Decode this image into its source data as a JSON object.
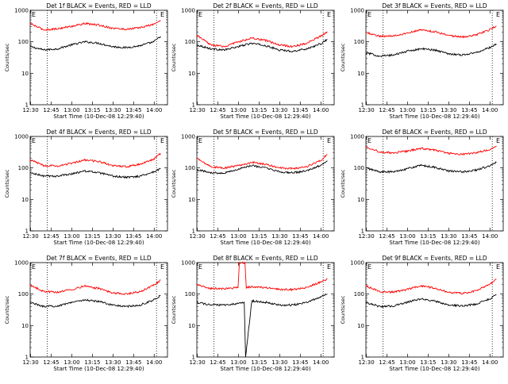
{
  "colors": {
    "events": "#000000",
    "lld": "#ff0000",
    "axes": "#000000",
    "background": "#ffffff"
  },
  "axis_labels": {
    "xlabel": "Start Time (10-Dec-08 12:29:40)",
    "ylabel": "Counts/sec",
    "xtick_labels": [
      "12:30",
      "12:45",
      "13:00",
      "13:15",
      "13:30",
      "13:45",
      "14:00"
    ],
    "ytick_labels": [
      "1",
      "10",
      "100",
      "1000"
    ],
    "corner_marker": "E"
  },
  "chart_data": [
    {
      "type": "line",
      "title": "Det 1f BLACK = Events, RED = LLD",
      "x_unit": "minutes after 12:29:40",
      "xlim": [
        0,
        100
      ],
      "ylim": [
        1,
        1000
      ],
      "yscale": "log",
      "grid": false,
      "legend": "none",
      "dotted_vlines": [
        12.5,
        92
      ],
      "series": [
        {
          "key": "events",
          "color": "#000000",
          "x": [
            0,
            10,
            20,
            30,
            40,
            50,
            60,
            70,
            80,
            90,
            95
          ],
          "values": [
            70,
            55,
            60,
            80,
            100,
            90,
            70,
            65,
            75,
            100,
            150
          ]
        },
        {
          "key": "lld",
          "color": "#ff0000",
          "x": [
            0,
            10,
            20,
            30,
            40,
            50,
            60,
            70,
            80,
            90,
            95
          ],
          "values": [
            380,
            240,
            260,
            310,
            380,
            340,
            270,
            250,
            280,
            360,
            480
          ]
        }
      ]
    },
    {
      "type": "line",
      "title": "Det 2f BLACK = Events, RED = LLD",
      "x_unit": "minutes after 12:29:40",
      "xlim": [
        0,
        100
      ],
      "ylim": [
        1,
        1000
      ],
      "yscale": "log",
      "grid": false,
      "legend": "none",
      "dotted_vlines": [
        12.5,
        92
      ],
      "series": [
        {
          "key": "events",
          "color": "#000000",
          "x": [
            0,
            10,
            20,
            30,
            40,
            50,
            60,
            70,
            80,
            90,
            95
          ],
          "values": [
            80,
            60,
            55,
            70,
            90,
            75,
            55,
            50,
            60,
            85,
            120
          ]
        },
        {
          "key": "lld",
          "color": "#ff0000",
          "x": [
            0,
            10,
            20,
            30,
            40,
            50,
            60,
            70,
            80,
            90,
            95
          ],
          "values": [
            160,
            80,
            70,
            100,
            130,
            110,
            80,
            70,
            90,
            150,
            200
          ]
        }
      ]
    },
    {
      "type": "line",
      "title": "Det 3f BLACK = Events, RED = LLD",
      "x_unit": "minutes after 12:29:40",
      "xlim": [
        0,
        100
      ],
      "ylim": [
        1,
        1000
      ],
      "yscale": "log",
      "grid": false,
      "legend": "none",
      "dotted_vlines": [
        12.5,
        92
      ],
      "series": [
        {
          "key": "events",
          "color": "#000000",
          "x": [
            0,
            10,
            20,
            30,
            40,
            50,
            60,
            70,
            80,
            90,
            95
          ],
          "values": [
            45,
            35,
            38,
            50,
            60,
            55,
            42,
            38,
            45,
            65,
            85
          ]
        },
        {
          "key": "lld",
          "color": "#ff0000",
          "x": [
            0,
            10,
            20,
            30,
            40,
            50,
            60,
            70,
            80,
            90,
            95
          ],
          "values": [
            200,
            150,
            155,
            190,
            240,
            210,
            160,
            140,
            165,
            240,
            320
          ]
        }
      ]
    },
    {
      "type": "line",
      "title": "Det 4f BLACK = Events, RED = LLD",
      "x_unit": "minutes after 12:29:40",
      "xlim": [
        0,
        100
      ],
      "ylim": [
        1,
        1000
      ],
      "yscale": "log",
      "grid": false,
      "legend": "none",
      "dotted_vlines": [
        12.5,
        92
      ],
      "series": [
        {
          "key": "events",
          "color": "#000000",
          "x": [
            0,
            10,
            20,
            30,
            40,
            50,
            60,
            70,
            80,
            90,
            95
          ],
          "values": [
            70,
            55,
            55,
            65,
            80,
            70,
            55,
            50,
            55,
            75,
            95
          ]
        },
        {
          "key": "lld",
          "color": "#ff0000",
          "x": [
            0,
            10,
            20,
            30,
            40,
            50,
            60,
            70,
            80,
            90,
            95
          ],
          "values": [
            180,
            120,
            115,
            140,
            180,
            160,
            120,
            110,
            130,
            190,
            290
          ]
        }
      ]
    },
    {
      "type": "line",
      "title": "Det 5f BLACK = Events, RED = LLD",
      "x_unit": "minutes after 12:29:40",
      "xlim": [
        0,
        100
      ],
      "ylim": [
        1,
        1000
      ],
      "yscale": "log",
      "grid": false,
      "legend": "none",
      "dotted_vlines": [
        12.5,
        92
      ],
      "series": [
        {
          "key": "events",
          "color": "#000000",
          "x": [
            0,
            10,
            20,
            30,
            40,
            50,
            60,
            70,
            80,
            90,
            95
          ],
          "values": [
            90,
            70,
            70,
            90,
            120,
            100,
            75,
            70,
            80,
            120,
            170
          ]
        },
        {
          "key": "lld",
          "color": "#ff0000",
          "x": [
            0,
            10,
            20,
            30,
            40,
            50,
            60,
            70,
            80,
            90,
            95
          ],
          "values": [
            200,
            110,
            100,
            120,
            150,
            130,
            100,
            95,
            110,
            170,
            270
          ]
        }
      ]
    },
    {
      "type": "line",
      "title": "Det 6f BLACK = Events, RED = LLD",
      "x_unit": "minutes after 12:29:40",
      "xlim": [
        0,
        100
      ],
      "ylim": [
        1,
        1000
      ],
      "yscale": "log",
      "grid": false,
      "legend": "none",
      "dotted_vlines": [
        12.5,
        92
      ],
      "series": [
        {
          "key": "events",
          "color": "#000000",
          "x": [
            0,
            10,
            20,
            30,
            40,
            50,
            60,
            70,
            80,
            90,
            95
          ],
          "values": [
            100,
            75,
            75,
            95,
            120,
            105,
            80,
            75,
            85,
            115,
            150
          ]
        },
        {
          "key": "lld",
          "color": "#ff0000",
          "x": [
            0,
            10,
            20,
            30,
            40,
            50,
            60,
            70,
            80,
            90,
            95
          ],
          "values": [
            480,
            320,
            300,
            340,
            420,
            370,
            290,
            270,
            300,
            380,
            500
          ]
        }
      ]
    },
    {
      "type": "line",
      "title": "Det 7f BLACK = Events, RED = LLD",
      "x_unit": "minutes after 12:29:40",
      "xlim": [
        0,
        100
      ],
      "ylim": [
        1,
        1000
      ],
      "yscale": "log",
      "grid": false,
      "legend": "none",
      "dotted_vlines": [
        12.5,
        92
      ],
      "series": [
        {
          "key": "events",
          "color": "#000000",
          "x": [
            0,
            10,
            20,
            30,
            40,
            50,
            60,
            70,
            80,
            90,
            95
          ],
          "values": [
            55,
            40,
            42,
            55,
            65,
            58,
            45,
            40,
            45,
            65,
            90
          ]
        },
        {
          "key": "lld",
          "color": "#ff0000",
          "x": [
            0,
            10,
            20,
            30,
            40,
            50,
            60,
            70,
            80,
            90,
            95
          ],
          "values": [
            190,
            120,
            115,
            140,
            180,
            150,
            110,
            100,
            120,
            190,
            280
          ]
        }
      ]
    },
    {
      "type": "line",
      "title": "Det 8f BLACK = Events, RED = LLD",
      "x_unit": "minutes after 12:29:40",
      "xlim": [
        0,
        100
      ],
      "ylim": [
        1,
        1000
      ],
      "yscale": "log",
      "grid": false,
      "legend": "none",
      "dotted_vlines": [
        12.5,
        92
      ],
      "series": [
        {
          "key": "events",
          "color": "#000000",
          "x": [
            0,
            10,
            20,
            30,
            34.5,
            35.5,
            40,
            50,
            60,
            70,
            80,
            90,
            95
          ],
          "values": [
            55,
            45,
            45,
            50,
            55,
            1,
            60,
            55,
            45,
            45,
            55,
            80,
            100
          ]
        },
        {
          "key": "lld",
          "color": "#ff0000",
          "x": [
            0,
            10,
            20,
            30,
            31,
            35,
            36,
            40,
            50,
            60,
            70,
            80,
            90,
            95
          ],
          "values": [
            200,
            150,
            150,
            160,
            1000,
            1000,
            160,
            170,
            160,
            140,
            140,
            160,
            240,
            300
          ]
        }
      ]
    },
    {
      "type": "line",
      "title": "Det 9f BLACK = Events, RED = LLD",
      "x_unit": "minutes after 12:29:40",
      "xlim": [
        0,
        100
      ],
      "ylim": [
        1,
        1000
      ],
      "yscale": "log",
      "grid": false,
      "legend": "none",
      "dotted_vlines": [
        12.5,
        92
      ],
      "series": [
        {
          "key": "events",
          "color": "#000000",
          "x": [
            0,
            10,
            20,
            30,
            40,
            50,
            60,
            70,
            80,
            90,
            95
          ],
          "values": [
            55,
            40,
            42,
            55,
            70,
            60,
            45,
            42,
            48,
            70,
            95
          ]
        },
        {
          "key": "lld",
          "color": "#ff0000",
          "x": [
            0,
            10,
            20,
            30,
            40,
            50,
            60,
            70,
            80,
            90,
            95
          ],
          "values": [
            180,
            120,
            115,
            140,
            180,
            155,
            115,
            105,
            125,
            200,
            290
          ]
        }
      ]
    }
  ]
}
